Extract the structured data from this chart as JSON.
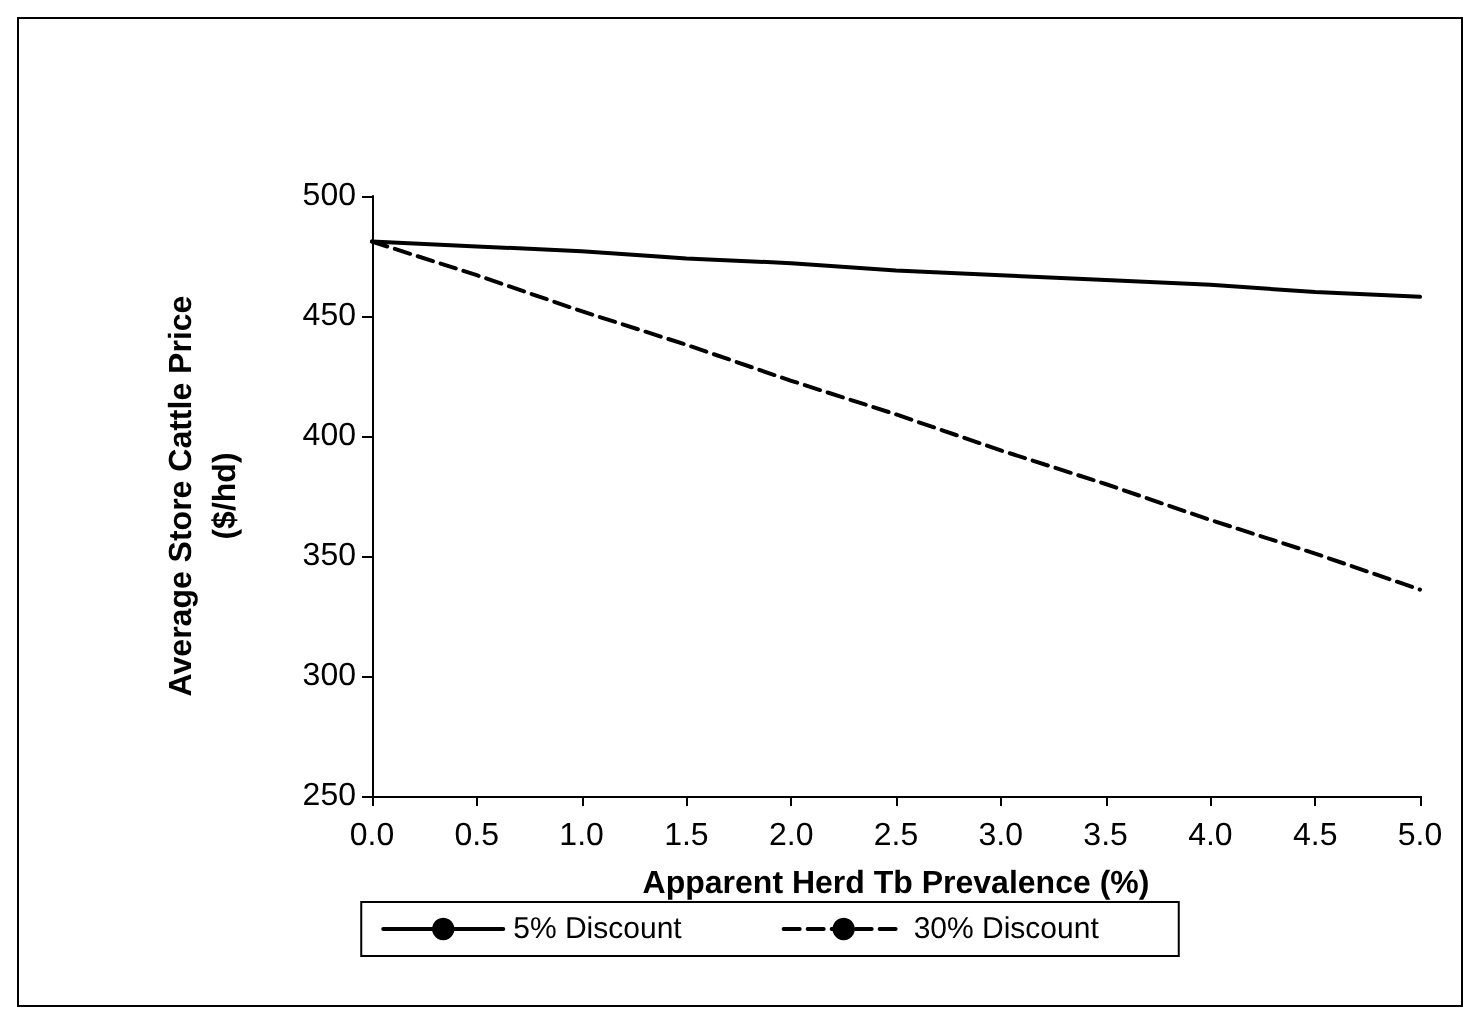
{
  "chart_data": {
    "type": "line",
    "xlabel": "Apparent Herd Tb Prevalence (%)",
    "ylabel": "Average Store Cattle Price\n($/hd)",
    "x": [
      0,
      0.5,
      1,
      1.5,
      2,
      2.5,
      3,
      3.5,
      4,
      4.5,
      5
    ],
    "series": [
      {
        "name": "5% Discount",
        "color": "#000000",
        "line_style": "solid",
        "values": [
          481,
          479,
          477,
          474,
          472,
          469,
          467,
          465,
          463,
          460,
          458
        ]
      },
      {
        "name": "30% Discount",
        "color": "#000000",
        "line_style": "dashed",
        "values": [
          481,
          467,
          452,
          438,
          423,
          409,
          394,
          380,
          365,
          351,
          336
        ]
      }
    ],
    "xlim": [
      0,
      5
    ],
    "xticks": [
      {
        "value": 0,
        "label": "0.0"
      },
      {
        "value": 0.5,
        "label": "0.5"
      },
      {
        "value": 1,
        "label": "1.0"
      },
      {
        "value": 1.5,
        "label": "1.5"
      },
      {
        "value": 2,
        "label": "2.0"
      },
      {
        "value": 2.5,
        "label": "2.5"
      },
      {
        "value": 3,
        "label": "3.0"
      },
      {
        "value": 3.5,
        "label": "3.5"
      },
      {
        "value": 4,
        "label": "4.0"
      },
      {
        "value": 4.5,
        "label": "4.5"
      },
      {
        "value": 5,
        "label": "5.0"
      }
    ],
    "ylim": [
      250,
      500
    ],
    "yticks": [
      250,
      300,
      350,
      400,
      450,
      500
    ],
    "grid": false,
    "legend": "bottom",
    "marker": "none"
  }
}
